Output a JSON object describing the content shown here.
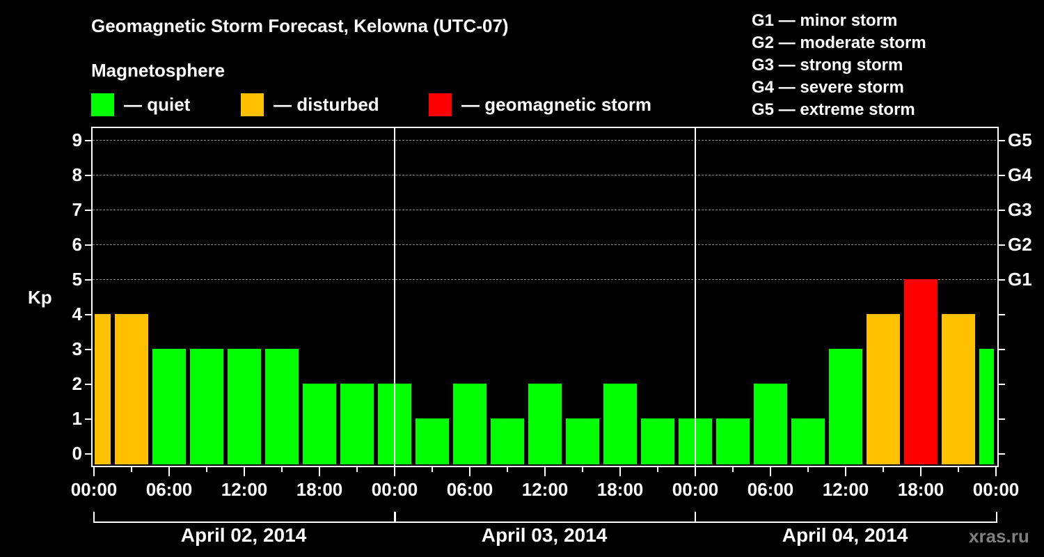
{
  "header": {
    "title": "Geomagnetic Storm Forecast, Kelowna (UTC-07)",
    "subtitle": "Magnetosphere"
  },
  "legend": [
    {
      "label": "— quiet",
      "color": "#00ff00"
    },
    {
      "label": "— disturbed",
      "color": "#ffc000"
    },
    {
      "label": "— geomagnetic storm",
      "color": "#ff0000"
    }
  ],
  "g_scale_legend": [
    "G1 — minor storm",
    "G2 — moderate storm",
    "G3 — strong storm",
    "G4 — severe storm",
    "G5 — extreme storm"
  ],
  "axes": {
    "y_label": "Kp",
    "y_ticks": [
      "0",
      "1",
      "2",
      "3",
      "4",
      "5",
      "6",
      "7",
      "8",
      "9"
    ],
    "g_ticks": [
      {
        "label": "G1",
        "kp": 5
      },
      {
        "label": "G2",
        "kp": 6
      },
      {
        "label": "G3",
        "kp": 7
      },
      {
        "label": "G4",
        "kp": 8
      },
      {
        "label": "G5",
        "kp": 9
      }
    ],
    "x_ticks": [
      "00:00",
      "06:00",
      "12:00",
      "18:00",
      "00:00",
      "06:00",
      "12:00",
      "18:00",
      "00:00",
      "06:00",
      "12:00",
      "18:00",
      "00:00"
    ],
    "dates": [
      "April 02, 2014",
      "April 03, 2014",
      "April 04, 2014"
    ]
  },
  "watermark": "xras.ru",
  "colors": {
    "quiet": "#00ff00",
    "disturbed": "#ffc000",
    "storm": "#ff0000",
    "background": "#000000",
    "grid": "#888888"
  },
  "chart_data": {
    "type": "bar",
    "title": "Geomagnetic Storm Forecast, Kelowna (UTC-07)",
    "subtitle": "Magnetosphere",
    "xlabel": "",
    "ylabel": "Kp",
    "ylim": [
      0,
      9
    ],
    "secondary_y_ticks": {
      "5": "G1",
      "6": "G2",
      "7": "G3",
      "8": "G4",
      "9": "G5"
    },
    "grid": "horizontal dashed at Kp 5-9",
    "x_range": [
      "April 02, 2014 00:00",
      "April 05, 2014 00:00"
    ],
    "bar_interval_hours": 3,
    "categories": [
      "Apr02 00:00-01:30",
      "Apr02 01:30-04:30",
      "Apr02 04:30-07:30",
      "Apr02 07:30-10:30",
      "Apr02 10:30-13:30",
      "Apr02 13:30-16:30",
      "Apr02 16:30-19:30",
      "Apr02 19:30-22:30",
      "Apr02 22:30-01:30",
      "Apr03 01:30-04:30",
      "Apr03 04:30-07:30",
      "Apr03 07:30-10:30",
      "Apr03 10:30-13:30",
      "Apr03 13:30-16:30",
      "Apr03 16:30-19:30",
      "Apr03 19:30-22:30",
      "Apr03 22:30-01:30",
      "Apr04 01:30-04:30",
      "Apr04 04:30-07:30",
      "Apr04 07:30-10:30",
      "Apr04 10:30-13:30",
      "Apr04 13:30-16:30",
      "Apr04 16:30-19:30",
      "Apr04 19:30-22:30",
      "Apr04 22:30-00:00"
    ],
    "values": [
      4,
      4,
      3,
      3,
      3,
      3,
      2,
      2,
      2,
      1,
      2,
      1,
      2,
      1,
      2,
      1,
      1,
      1,
      2,
      1,
      3,
      4,
      5,
      4,
      3
    ],
    "status": [
      "disturbed",
      "disturbed",
      "quiet",
      "quiet",
      "quiet",
      "quiet",
      "quiet",
      "quiet",
      "quiet",
      "quiet",
      "quiet",
      "quiet",
      "quiet",
      "quiet",
      "quiet",
      "quiet",
      "quiet",
      "quiet",
      "quiet",
      "quiet",
      "quiet",
      "disturbed",
      "storm",
      "disturbed",
      "quiet"
    ],
    "legend": [
      "quiet",
      "disturbed",
      "geomagnetic storm"
    ]
  }
}
